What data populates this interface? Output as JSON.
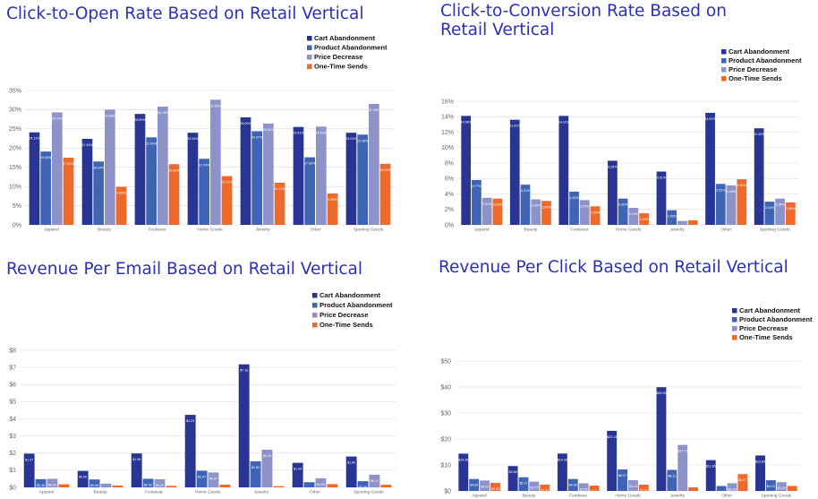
{
  "chart_data": [
    {
      "type": "bar",
      "title": "Click-to-Open Rate Based on Retail Vertical",
      "categories": [
        "Apparel",
        "Beauty",
        "Footwear",
        "Home Goods",
        "Jewelry",
        "Other",
        "Sporting Goods"
      ],
      "ylim": [
        0,
        35
      ],
      "yticks": [
        0,
        5,
        10,
        15,
        20,
        25,
        30,
        35
      ],
      "ytick_labels": [
        "0%",
        "5%",
        "10%",
        "15%",
        "20%",
        "25%",
        "30%",
        "35%"
      ],
      "grid": true,
      "legend_position": "top-right",
      "series": [
        {
          "name": "Cart Abandonment",
          "color": "#283593",
          "values": [
            24.1,
            22.4,
            28.9,
            24.0,
            28.0,
            25.5,
            24.0
          ],
          "labels": [
            "24.13%",
            "22.43%",
            "28.90%",
            "24.04%",
            "28.00%",
            "25.51%",
            "24.01%"
          ]
        },
        {
          "name": "Product Abandonment",
          "color": "#3e64b3",
          "values": [
            19.1,
            16.5,
            22.8,
            17.2,
            24.4,
            17.6,
            23.5
          ],
          "labels": [
            "19.06%",
            "16.54%",
            "22.83%",
            "17.24%",
            "24.37%",
            "17.60%",
            "23.48%"
          ]
        },
        {
          "name": "Price Decrease",
          "color": "#8d93c9",
          "values": [
            29.3,
            30.0,
            30.8,
            32.6,
            26.4,
            25.6,
            31.5
          ],
          "labels": [
            "29.32%",
            "29.96%",
            "30.78%",
            "32.56%",
            "26.41%",
            "25.63%",
            "31.46%"
          ]
        },
        {
          "name": "One-Time Sends",
          "color": "#ee6a2c",
          "values": [
            17.5,
            9.9,
            15.8,
            12.7,
            11.0,
            8.2,
            15.9
          ],
          "labels": [
            "17.51%",
            "9.89%",
            "15.84%",
            "12.73%",
            "11.02%",
            "8.25%",
            "15.92%"
          ]
        }
      ]
    },
    {
      "type": "bar",
      "title": "Click-to-Conversion Rate Based on Retail Vertical",
      "categories": [
        "Apparel",
        "Beauty",
        "Footwear",
        "Home Goods",
        "Jewelry",
        "Other",
        "Sporting Goods"
      ],
      "ylim": [
        0,
        16
      ],
      "yticks": [
        0,
        2,
        4,
        6,
        8,
        10,
        12,
        14,
        16
      ],
      "ytick_labels": [
        "0%",
        "2%",
        "4%",
        "6%",
        "8%",
        "10%",
        "12%",
        "14%",
        "16%"
      ],
      "grid": true,
      "legend_position": "top-right",
      "series": [
        {
          "name": "Cart Abandonment",
          "color": "#283593",
          "values": [
            14.1,
            13.6,
            14.1,
            8.3,
            6.9,
            14.5,
            12.5
          ],
          "labels": [
            "14.08%",
            "13.62%",
            "14.11%",
            "8.28%",
            "6.91%",
            "14.51%",
            "12.49%"
          ]
        },
        {
          "name": "Product Abandonment",
          "color": "#3e64b3",
          "values": [
            5.8,
            5.2,
            4.3,
            3.4,
            1.9,
            5.3,
            3.0
          ],
          "labels": [
            "5.77%",
            "5.21%",
            "4.30%",
            "3.42%",
            "1.90%",
            "5.32%",
            "3.02%"
          ]
        },
        {
          "name": "Price Decrease",
          "color": "#8d93c9",
          "values": [
            3.5,
            3.3,
            3.2,
            2.2,
            0.5,
            5.1,
            3.4
          ],
          "labels": [
            "3.51%",
            "3.30%",
            "3.20%",
            "2.19%",
            "0.50%",
            "5.08%",
            "3.36%"
          ]
        },
        {
          "name": "One-Time Sends",
          "color": "#ee6a2c",
          "values": [
            3.4,
            3.1,
            2.4,
            1.5,
            0.6,
            5.9,
            2.9
          ],
          "labels": [
            "3.43%",
            "3.06%",
            "2.36%",
            "1.49%",
            "0.62%",
            "5.91%",
            "2.88%"
          ]
        }
      ]
    },
    {
      "type": "bar",
      "title": "Revenue Per Email Based on Retail Vertical",
      "categories": [
        "Apparel",
        "Beauty",
        "Footwear",
        "Home Goods",
        "Jewelry",
        "Other",
        "Sporting Goods"
      ],
      "ylim": [
        0,
        8
      ],
      "yticks": [
        0,
        1,
        2,
        3,
        4,
        5,
        6,
        7,
        8
      ],
      "ytick_labels": [
        "$0",
        "$1",
        "$2",
        "$3",
        "$4",
        "$5",
        "$6",
        "$7",
        "$8"
      ],
      "grid": true,
      "legend_position": "top-right",
      "series": [
        {
          "name": "Cart Abandonment",
          "color": "#283593",
          "values": [
            1.97,
            0.96,
            1.98,
            4.23,
            7.18,
            1.43,
            1.8
          ],
          "labels": [
            "$1.97",
            "$0.96",
            "$1.98",
            "$4.23",
            "$7.18",
            "$1.43",
            "$1.80"
          ]
        },
        {
          "name": "Product Abandonment",
          "color": "#3e64b3",
          "values": [
            0.48,
            0.46,
            0.5,
            0.97,
            1.52,
            0.3,
            0.36
          ],
          "labels": [
            "$0.48",
            "$0.46",
            "$0.50",
            "$0.97",
            "$1.52",
            "$0.30",
            "$0.36"
          ]
        },
        {
          "name": "Price Decrease",
          "color": "#8d93c9",
          "values": [
            0.5,
            0.22,
            0.47,
            0.87,
            2.2,
            0.53,
            0.74
          ],
          "labels": [
            "$0.50",
            "$0.22",
            "$0.47",
            "$0.87",
            "$2.20",
            "$0.53",
            "$0.74"
          ]
        },
        {
          "name": "One-Time Sends",
          "color": "#ee6a2c",
          "values": [
            0.18,
            0.11,
            0.09,
            0.16,
            0.07,
            0.19,
            0.15
          ],
          "labels": [
            "$0.18",
            "$0.11",
            "$0.09",
            "$0.16",
            "$0.07",
            "$0.19",
            "$0.15"
          ]
        }
      ]
    },
    {
      "type": "bar",
      "title": "Revenue Per Click Based on Retail Vertical",
      "categories": [
        "Apparel",
        "Beauty",
        "Footwear",
        "Home Goods",
        "Jewelry",
        "Other",
        "Sporting Goods"
      ],
      "ylim": [
        0,
        50
      ],
      "yticks": [
        0,
        10,
        20,
        30,
        40,
        50
      ],
      "ytick_labels": [
        "$0",
        "$10",
        "$20",
        "$30",
        "$40",
        "$50"
      ],
      "grid": true,
      "legend_position": "top-right",
      "series": [
        {
          "name": "Cart Abandonment",
          "color": "#283593",
          "values": [
            14.35,
            9.58,
            14.39,
            23.13,
            39.93,
            11.85,
            13.65
          ],
          "labels": [
            "$14.35",
            "$9.58",
            "$14.39",
            "$23.13",
            "$39.93",
            "$11.85",
            "$13.65"
          ]
        },
        {
          "name": "Product Abandonment",
          "color": "#3e64b3",
          "values": [
            4.6,
            5.27,
            4.6,
            8.27,
            8.11,
            1.9,
            4.12
          ],
          "labels": [
            "$4.60",
            "$5.27",
            "$4.60",
            "$8.27",
            "$8.11",
            "$1.90",
            "$4.12"
          ]
        },
        {
          "name": "Price Decrease",
          "color": "#8d93c9",
          "values": [
            4.02,
            3.57,
            2.95,
            4.13,
            17.72,
            2.95,
            3.39
          ],
          "labels": [
            "$4.02",
            "$3.57",
            "$2.95",
            "$4.13",
            "$17.72",
            "$2.95",
            "$3.39"
          ]
        },
        {
          "name": "One-Time Sends",
          "color": "#ee6a2c",
          "values": [
            3.09,
            2.43,
            2.06,
            2.42,
            1.41,
            6.47,
            1.94
          ],
          "labels": [
            "$3.09",
            "$2.43",
            "$2.06",
            "$2.42",
            "$1.41",
            "$6.47",
            "$1.94"
          ]
        }
      ]
    }
  ]
}
